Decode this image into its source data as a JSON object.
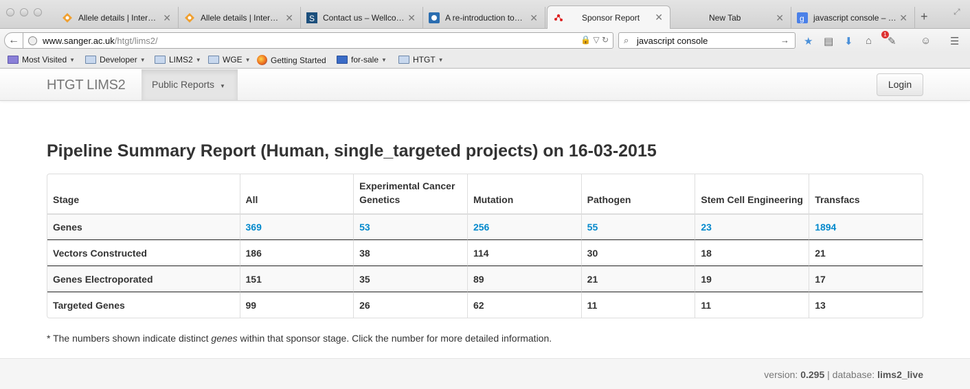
{
  "browser": {
    "tabs": [
      {
        "title": "Allele details | Inter…",
        "icon": "allele-icon"
      },
      {
        "title": "Allele details | Inter…",
        "icon": "allele-icon"
      },
      {
        "title": "Contact us – Wellco…",
        "icon": "wellcome-icon"
      },
      {
        "title": "A re-introduction to…",
        "icon": "mdn-icon"
      },
      {
        "title": "Sponsor Report",
        "icon": "lims-icon"
      },
      {
        "title": "New Tab",
        "icon": ""
      },
      {
        "title": "javascript console – …",
        "icon": "google-icon"
      }
    ],
    "url_host": "www.sanger.ac.uk",
    "url_path": "/htgt/lims2/",
    "search_value": "javascript console",
    "notification_count": "1",
    "bookmarks": [
      {
        "label": "Most Visited",
        "dropdown": true
      },
      {
        "label": "Developer",
        "dropdown": true
      },
      {
        "label": "LIMS2",
        "dropdown": true
      },
      {
        "label": "WGE",
        "dropdown": true
      },
      {
        "label": "Getting Started",
        "dropdown": false
      },
      {
        "label": "for-sale",
        "dropdown": true
      },
      {
        "label": "HTGT",
        "dropdown": true
      }
    ]
  },
  "site": {
    "brand": "HTGT LIMS2",
    "nav_dropdown": "Public Reports",
    "login": "Login"
  },
  "report": {
    "title": "Pipeline Summary Report (Human, single_targeted projects) on 16-03-2015",
    "headers": [
      "Stage",
      "All",
      "Experimental Cancer Genetics",
      "Mutation",
      "Pathogen",
      "Stem Cell Engineering",
      "Transfacs"
    ],
    "rows": [
      {
        "stage": "Genes",
        "values": [
          "369",
          "53",
          "256",
          "55",
          "23",
          "1894"
        ],
        "links": true
      },
      {
        "stage": "Vectors Constructed",
        "values": [
          "186",
          "38",
          "114",
          "30",
          "18",
          "21"
        ],
        "links": false
      },
      {
        "stage": "Genes Electroporated",
        "values": [
          "151",
          "35",
          "89",
          "21",
          "19",
          "17"
        ],
        "links": false
      },
      {
        "stage": "Targeted Genes",
        "values": [
          "99",
          "26",
          "62",
          "11",
          "11",
          "13"
        ],
        "links": false
      }
    ],
    "footnote_pre": "* The numbers shown indicate distinct ",
    "footnote_em": "genes",
    "footnote_post": " within that sponsor stage. Click the number for more detailed information."
  },
  "footer": {
    "version_label": "version: ",
    "version": "0.295",
    "database_label": " | database: ",
    "database": "lims2_live"
  },
  "colors": {
    "link": "#0088cc",
    "text": "#333333"
  }
}
